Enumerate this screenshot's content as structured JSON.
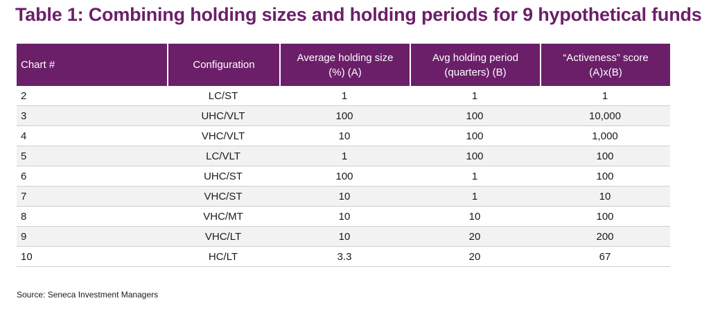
{
  "title": "Table 1: Combining holding sizes and holding periods for 9 hypothetical funds",
  "table": {
    "headers": [
      {
        "line1": "Chart #",
        "line2": ""
      },
      {
        "line1": "Configuration",
        "line2": ""
      },
      {
        "line1": "Average holding size",
        "line2": "(%) (A)"
      },
      {
        "line1": "Avg holding period",
        "line2": "(quarters) (B)"
      },
      {
        "line1": "“Activeness” score",
        "line2": "(A)x(B)"
      }
    ],
    "rows": [
      {
        "chart": "2",
        "config": "LC/ST",
        "size": "1",
        "period": "1",
        "score": "1"
      },
      {
        "chart": "3",
        "config": "UHC/VLT",
        "size": "100",
        "period": "100",
        "score": "10,000"
      },
      {
        "chart": "4",
        "config": "VHC/VLT",
        "size": "10",
        "period": "100",
        "score": "1,000"
      },
      {
        "chart": "5",
        "config": "LC/VLT",
        "size": "1",
        "period": "100",
        "score": "100"
      },
      {
        "chart": "6",
        "config": "UHC/ST",
        "size": "100",
        "period": "1",
        "score": "100"
      },
      {
        "chart": "7",
        "config": "VHC/ST",
        "size": "10",
        "period": "1",
        "score": "10"
      },
      {
        "chart": "8",
        "config": "VHC/MT",
        "size": "10",
        "period": "10",
        "score": "100"
      },
      {
        "chart": "9",
        "config": "VHC/LT",
        "size": "10",
        "period": "20",
        "score": "200"
      },
      {
        "chart": "10",
        "config": "HC/LT",
        "size": "3.3",
        "period": "20",
        "score": "67"
      }
    ]
  },
  "source": "Source: Seneca Investment Managers",
  "colors": {
    "accent": "#6b1f69",
    "header_text": "#ffffff",
    "stripe": "#f2f2f2"
  }
}
